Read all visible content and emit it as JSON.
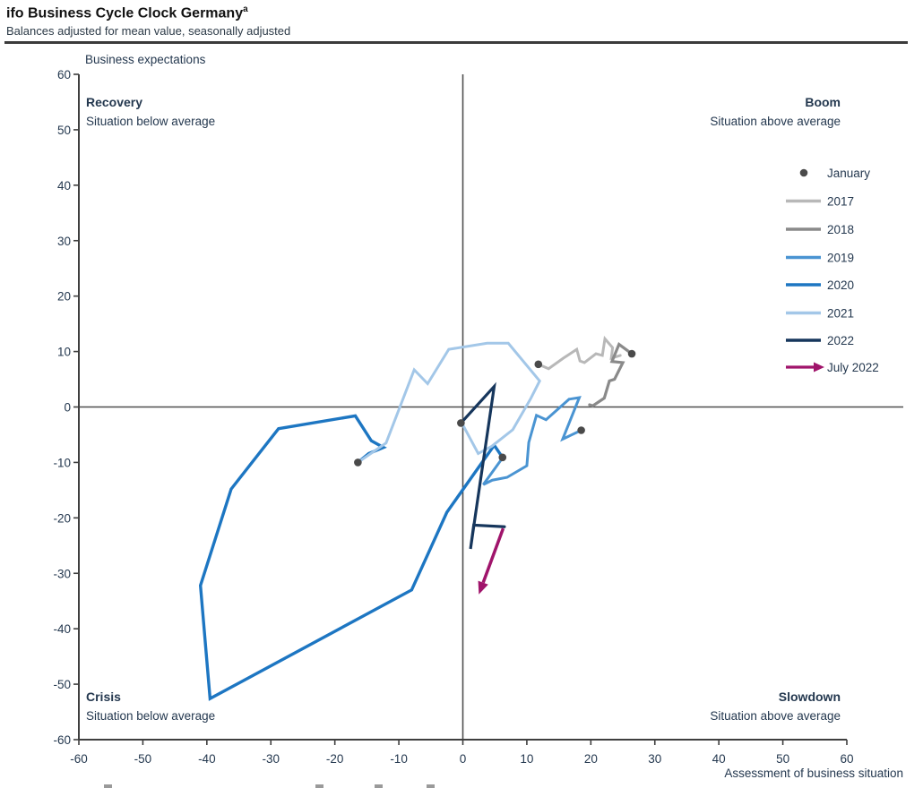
{
  "header": {
    "title": "ifo Business Cycle Clock Germany",
    "title_superscript": "a",
    "subtitle": "Balances adjusted for mean value, seasonally adjusted"
  },
  "axes": {
    "x_title": "Assessment of business situation",
    "y_title": "Business expectations"
  },
  "quadrants": {
    "top_left": {
      "name": "Recovery",
      "desc": "Situation below average"
    },
    "top_right": {
      "name": "Boom",
      "desc": "Situation above average"
    },
    "bottom_left": {
      "name": "Crisis",
      "desc": "Situation below average"
    },
    "bottom_right": {
      "name": "Slowdown",
      "desc": "Situation above average"
    }
  },
  "chart_data": {
    "type": "line",
    "title": "ifo Business Cycle Clock Germany",
    "xlabel": "Assessment of business situation",
    "ylabel": "Business expectations",
    "xlim": [
      -60,
      60
    ],
    "ylim": [
      -60,
      60
    ],
    "xticks": [
      -60,
      -50,
      -40,
      -30,
      -20,
      -10,
      0,
      10,
      20,
      30,
      40,
      50,
      60
    ],
    "yticks": [
      -60,
      -50,
      -40,
      -30,
      -20,
      -10,
      0,
      10,
      20,
      30,
      40,
      50,
      60
    ],
    "grid": false,
    "legend_position": "upper right",
    "axis_color": "#3f3f3f",
    "zero_line_color": "#4f4f4f",
    "january_marker": {
      "label": "January",
      "color": "#4a4a4a",
      "points": [
        [
          11.8,
          7.7
        ],
        [
          26.4,
          9.6
        ],
        [
          18.5,
          -4.2
        ],
        [
          6.2,
          -9.1
        ],
        [
          -16.4,
          -10.0
        ],
        [
          -0.3,
          -2.9
        ]
      ]
    },
    "series": [
      {
        "name": "2017",
        "color": "#b8b8b8",
        "width": 3,
        "points": [
          [
            11.8,
            7.7
          ],
          [
            13.4,
            6.9
          ],
          [
            15.7,
            8.8
          ],
          [
            17.8,
            10.4
          ],
          [
            18.3,
            8.3
          ],
          [
            19.0,
            8.0
          ],
          [
            20.8,
            9.6
          ],
          [
            21.8,
            9.3
          ],
          [
            22.2,
            12.3
          ],
          [
            23.4,
            10.7
          ],
          [
            23.2,
            8.8
          ],
          [
            24.6,
            9.3
          ]
        ]
      },
      {
        "name": "2018",
        "color": "#8a8a8a",
        "width": 3.2,
        "points": [
          [
            26.4,
            9.6
          ],
          [
            24.4,
            11.3
          ],
          [
            23.3,
            8.2
          ],
          [
            25.0,
            8.0
          ],
          [
            23.7,
            5.0
          ],
          [
            22.9,
            4.7
          ],
          [
            22.1,
            1.6
          ],
          [
            20.3,
            0.2
          ],
          [
            19.8,
            0.4
          ]
        ]
      },
      {
        "name": "2019",
        "color": "#4a94d2",
        "width": 3,
        "points": [
          [
            18.5,
            -4.2
          ],
          [
            15.6,
            -5.8
          ],
          [
            18.2,
            1.7
          ],
          [
            16.6,
            1.4
          ],
          [
            13.0,
            -2.3
          ],
          [
            11.5,
            -1.5
          ],
          [
            10.3,
            -6.4
          ],
          [
            10.0,
            -10.6
          ],
          [
            6.9,
            -12.7
          ],
          [
            4.6,
            -13.2
          ],
          [
            3.2,
            -14.0
          ],
          [
            6.0,
            -9.5
          ]
        ]
      },
      {
        "name": "2020",
        "color": "#1d76c2",
        "width": 3.4,
        "points": [
          [
            6.2,
            -9.1
          ],
          [
            4.9,
            -6.9
          ],
          [
            -2.5,
            -19.0
          ],
          [
            -8.0,
            -33.0
          ],
          [
            -39.5,
            -52.6
          ],
          [
            -41.0,
            -32.2
          ],
          [
            -36.2,
            -14.8
          ],
          [
            -28.8,
            -3.9
          ],
          [
            -16.8,
            -1.6
          ],
          [
            -14.3,
            -6.1
          ],
          [
            -12.4,
            -7.3
          ],
          [
            -14.7,
            -8.4
          ],
          [
            -16.4,
            -10.0
          ]
        ]
      },
      {
        "name": "2021",
        "color": "#a3c7e8",
        "width": 3,
        "points": [
          [
            -16.4,
            -10.0
          ],
          [
            -12.0,
            -6.5
          ],
          [
            -7.6,
            6.7
          ],
          [
            -5.5,
            4.2
          ],
          [
            -2.2,
            10.4
          ],
          [
            3.8,
            11.5
          ],
          [
            7.1,
            11.5
          ],
          [
            12.0,
            4.7
          ],
          [
            10.6,
            1.5
          ],
          [
            7.8,
            -4.1
          ],
          [
            4.5,
            -7.1
          ],
          [
            2.4,
            -8.4
          ],
          [
            -0.2,
            -2.8
          ]
        ]
      },
      {
        "name": "2022",
        "color": "#16365c",
        "width": 3.2,
        "points": [
          [
            -0.3,
            -2.9
          ],
          [
            4.9,
            3.7
          ],
          [
            2.0,
            -19.2
          ],
          [
            1.2,
            -25.6
          ],
          [
            1.7,
            -21.3
          ],
          [
            6.5,
            -21.6
          ]
        ]
      }
    ],
    "final_arrow": {
      "label": "July 2022",
      "color": "#a0146b",
      "width": 3.5,
      "from": [
        6.3,
        -21.9
      ],
      "to": [
        2.5,
        -33.8
      ]
    },
    "legend": [
      {
        "label": "January",
        "marker": "dot",
        "color": "#4a4a4a"
      },
      {
        "label": "2017",
        "marker": "line",
        "color": "#b8b8b8"
      },
      {
        "label": "2018",
        "marker": "line",
        "color": "#8a8a8a"
      },
      {
        "label": "2019",
        "marker": "line",
        "color": "#4a94d2"
      },
      {
        "label": "2020",
        "marker": "line",
        "color": "#1d76c2"
      },
      {
        "label": "2021",
        "marker": "line",
        "color": "#a3c7e8"
      },
      {
        "label": "2022",
        "marker": "line",
        "color": "#16365c"
      },
      {
        "label": "July 2022",
        "marker": "arrow",
        "color": "#a0146b"
      }
    ]
  }
}
